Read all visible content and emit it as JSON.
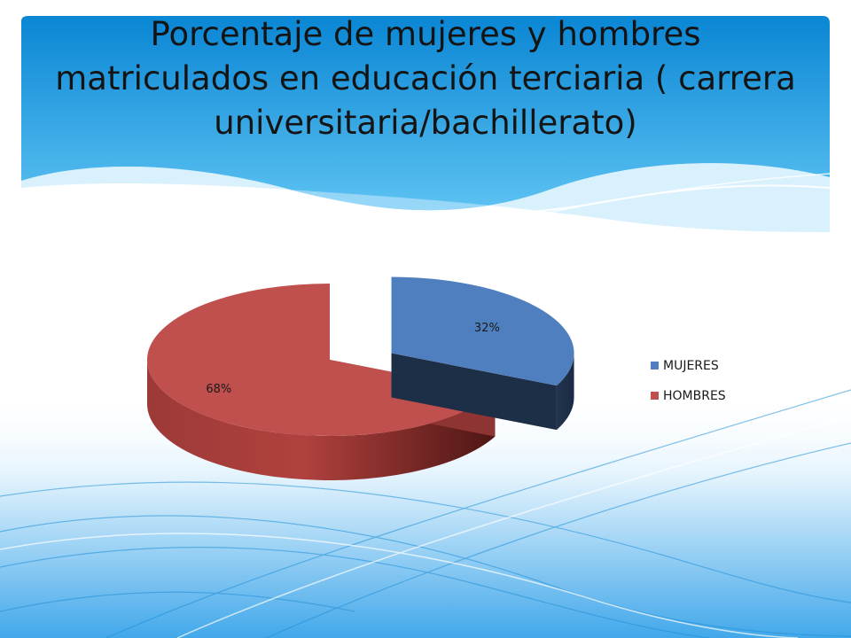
{
  "slide": {
    "title": "Porcentaje de mujeres y hombres matriculados en educación terciaria ( carrera universitaria/bachillerato)"
  },
  "colors": {
    "banner_top": "#0a86d4",
    "banner_bottom": "#5cc2f2",
    "background_bottom": "#2f9be0"
  },
  "chart_data": {
    "type": "pie",
    "title": "",
    "categories": [
      "MUJERES",
      "HOMBRES"
    ],
    "values": [
      32,
      68
    ],
    "labels": [
      "32%",
      "68%"
    ],
    "colors": [
      "#4f7fbf",
      "#c0504d"
    ],
    "exploded": "MUJERES",
    "style": "3d",
    "legend": {
      "position": "right",
      "entries": [
        "MUJERES",
        "HOMBRES"
      ]
    }
  }
}
